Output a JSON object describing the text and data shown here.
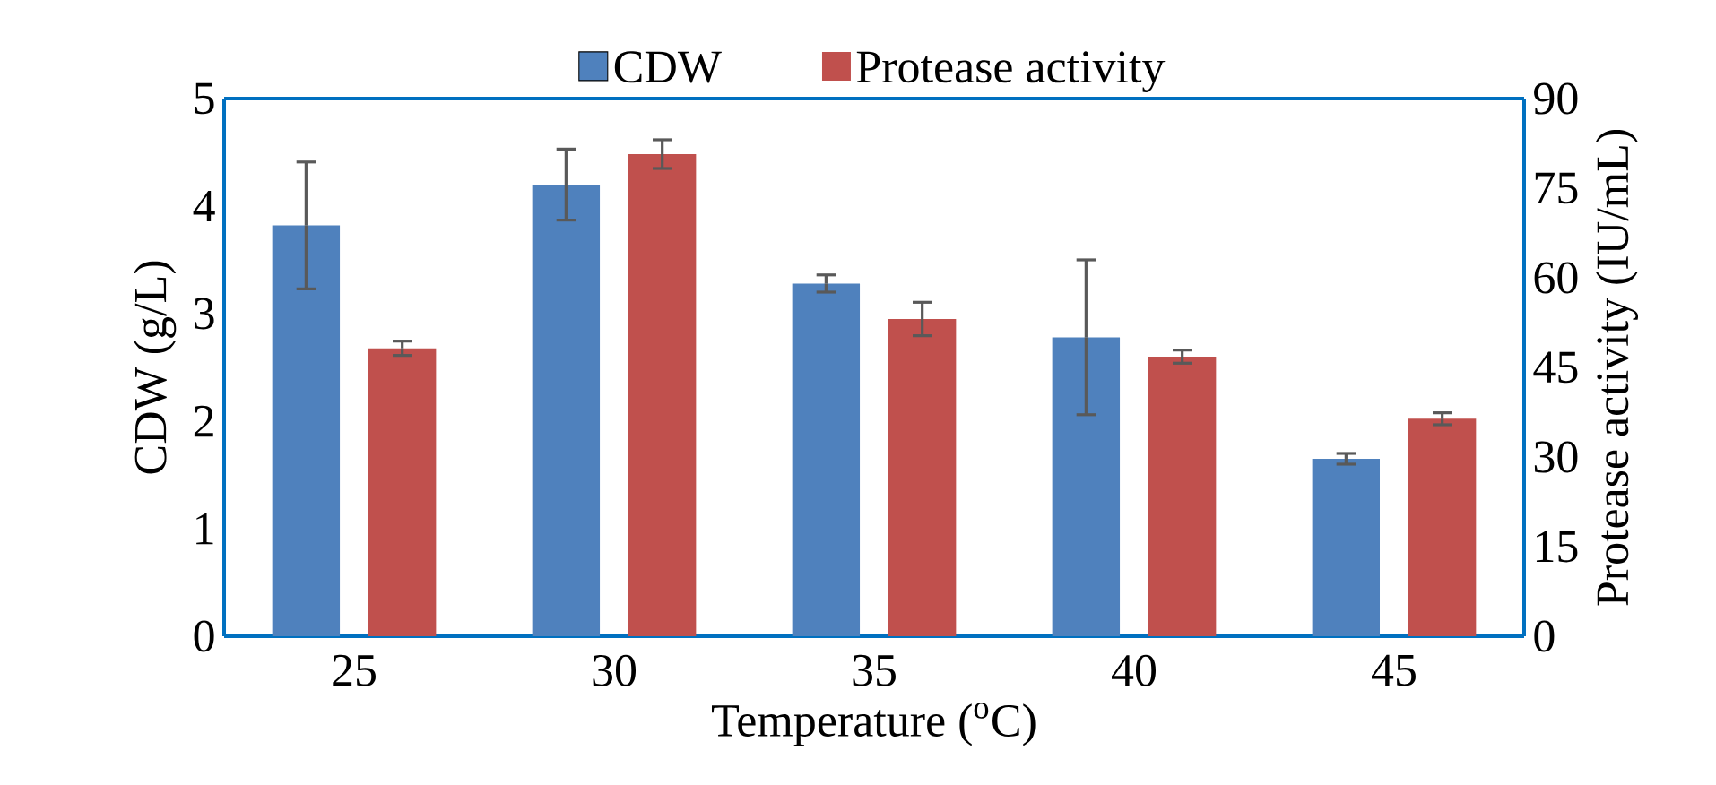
{
  "chart_data": {
    "type": "bar",
    "xlabel": "Temperature ($^{o}$C)",
    "ylabel": "CDW (g/L)",
    "y2label": "Protease activity (IU/mL)",
    "categories": [
      "25",
      "30",
      "35",
      "40",
      "45"
    ],
    "series": [
      {
        "name": "CDW",
        "color": "#4f81bd",
        "values": [
          3.82,
          4.2,
          3.28,
          2.78,
          1.65
        ],
        "errors": [
          0.59,
          0.33,
          0.08,
          0.72,
          0.05
        ]
      },
      {
        "name": "Protease activity",
        "color": "#c0504d",
        "axis": "y2",
        "values": [
          48.2,
          80.7,
          53.1,
          46.8,
          36.4
        ],
        "errors": [
          1.2,
          2.4,
          2.8,
          1.1,
          1.0
        ]
      }
    ],
    "ylim": [
      0,
      5
    ],
    "yticks": [
      0,
      1,
      2,
      3,
      4,
      5
    ],
    "y2lim": [
      0,
      90
    ],
    "y2ticks": [
      0,
      15,
      30,
      45,
      60,
      75,
      90
    ],
    "grid": false,
    "legend": "top"
  }
}
